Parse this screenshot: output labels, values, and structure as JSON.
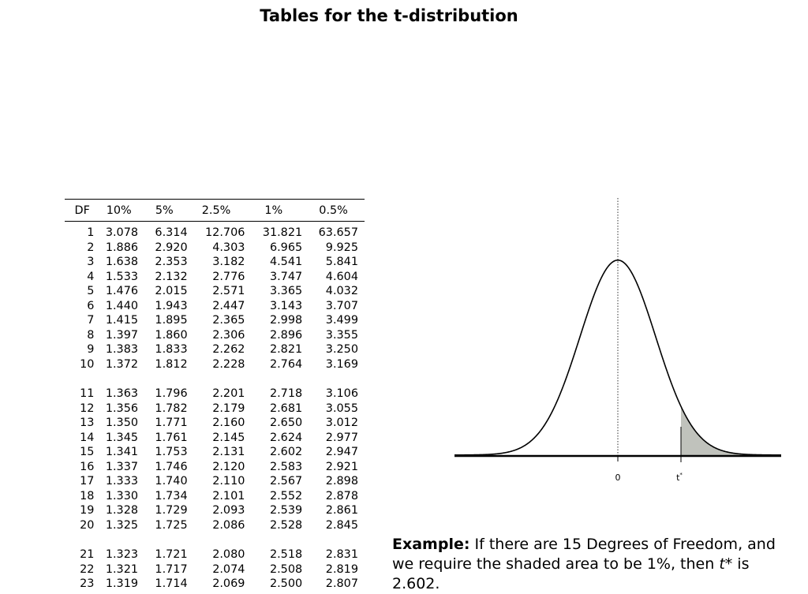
{
  "title": "Tables for the t-distribution",
  "table": {
    "headers": [
      "DF",
      "10%",
      "5%",
      "2.5%",
      "1%",
      "0.5%"
    ],
    "rows": [
      [
        "1",
        "3.078",
        "6.314",
        "12.706",
        "31.821",
        "63.657"
      ],
      [
        "2",
        "1.886",
        "2.920",
        "4.303",
        "6.965",
        "9.925"
      ],
      [
        "3",
        "1.638",
        "2.353",
        "3.182",
        "4.541",
        "5.841"
      ],
      [
        "4",
        "1.533",
        "2.132",
        "2.776",
        "3.747",
        "4.604"
      ],
      [
        "5",
        "1.476",
        "2.015",
        "2.571",
        "3.365",
        "4.032"
      ],
      [
        "6",
        "1.440",
        "1.943",
        "2.447",
        "3.143",
        "3.707"
      ],
      [
        "7",
        "1.415",
        "1.895",
        "2.365",
        "2.998",
        "3.499"
      ],
      [
        "8",
        "1.397",
        "1.860",
        "2.306",
        "2.896",
        "3.355"
      ],
      [
        "9",
        "1.383",
        "1.833",
        "2.262",
        "2.821",
        "3.250"
      ],
      [
        "10",
        "1.372",
        "1.812",
        "2.228",
        "2.764",
        "3.169"
      ],
      [
        "11",
        "1.363",
        "1.796",
        "2.201",
        "2.718",
        "3.106"
      ],
      [
        "12",
        "1.356",
        "1.782",
        "2.179",
        "2.681",
        "3.055"
      ],
      [
        "13",
        "1.350",
        "1.771",
        "2.160",
        "2.650",
        "3.012"
      ],
      [
        "14",
        "1.345",
        "1.761",
        "2.145",
        "2.624",
        "2.977"
      ],
      [
        "15",
        "1.341",
        "1.753",
        "2.131",
        "2.602",
        "2.947"
      ],
      [
        "16",
        "1.337",
        "1.746",
        "2.120",
        "2.583",
        "2.921"
      ],
      [
        "17",
        "1.333",
        "1.740",
        "2.110",
        "2.567",
        "2.898"
      ],
      [
        "18",
        "1.330",
        "1.734",
        "2.101",
        "2.552",
        "2.878"
      ],
      [
        "19",
        "1.328",
        "1.729",
        "2.093",
        "2.539",
        "2.861"
      ],
      [
        "20",
        "1.325",
        "1.725",
        "2.086",
        "2.528",
        "2.845"
      ],
      [
        "21",
        "1.323",
        "1.721",
        "2.080",
        "2.518",
        "2.831"
      ],
      [
        "22",
        "1.321",
        "1.717",
        "2.074",
        "2.508",
        "2.819"
      ],
      [
        "23",
        "1.319",
        "1.714",
        "2.069",
        "2.500",
        "2.807"
      ]
    ]
  },
  "figure": {
    "label_zero": "0",
    "label_t": "t",
    "label_t_sup": "*",
    "shade_color": "#c0c2bc"
  },
  "example": {
    "lead": "Example:",
    "text1": " If there are 15 Degrees of Freedom, and we require the shaded area to be 1%, then ",
    "tstar": "t*",
    "text2": " is 2.602."
  }
}
